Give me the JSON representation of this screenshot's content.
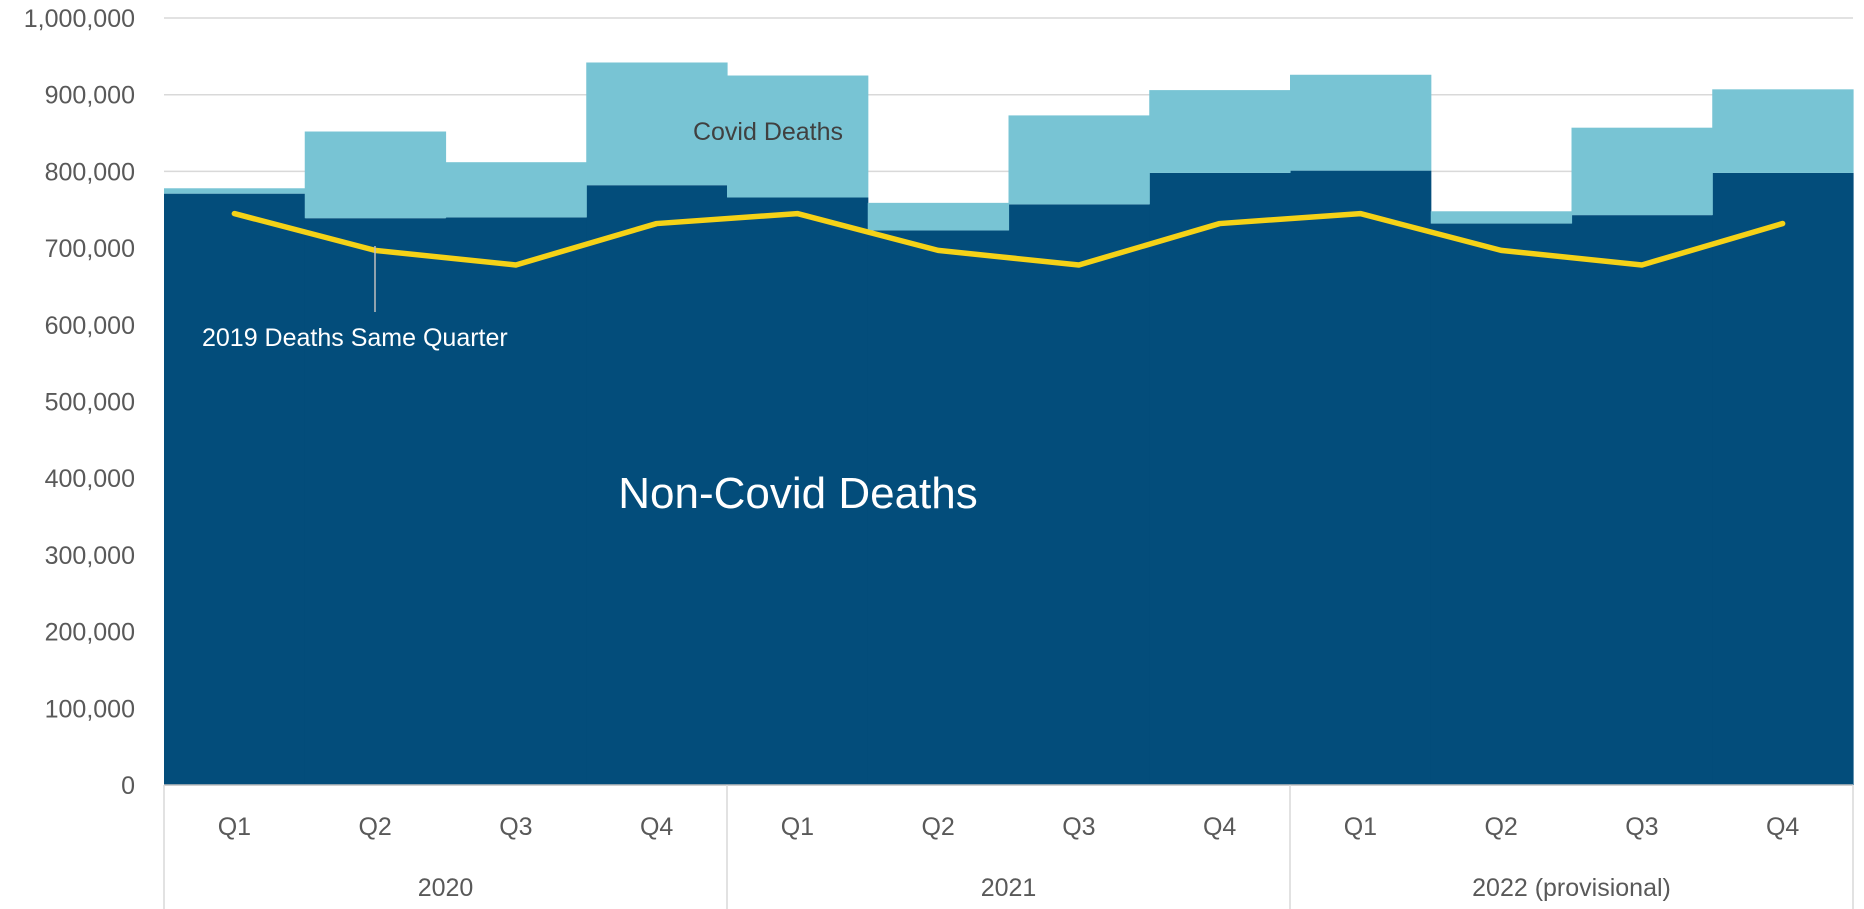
{
  "chart_data": {
    "type": "area",
    "title": "",
    "xlabel": "",
    "ylabel": "",
    "ylim": [
      0,
      1000000
    ],
    "yticks": [
      "0",
      "100,000",
      "200,000",
      "300,000",
      "400,000",
      "500,000",
      "600,000",
      "700,000",
      "800,000",
      "900,000",
      "1,000,000"
    ],
    "grid": true,
    "categories": [
      "Q1",
      "Q2",
      "Q3",
      "Q4",
      "Q1",
      "Q2",
      "Q3",
      "Q4",
      "Q1",
      "Q2",
      "Q3",
      "Q4"
    ],
    "groups": [
      {
        "label": "2020",
        "span": 4
      },
      {
        "label": "2021",
        "span": 4
      },
      {
        "label": "2022 (provisional)",
        "span": 4
      }
    ],
    "series": [
      {
        "name": "Non-Covid Deaths",
        "kind": "stacked-step-area",
        "color": "#034d7b",
        "values": [
          771000,
          739000,
          740000,
          782000,
          766000,
          723000,
          757000,
          798000,
          801000,
          732000,
          743000,
          798000
        ]
      },
      {
        "name": "Covid Deaths",
        "kind": "stacked-step-area",
        "color": "#78c4d4",
        "values": [
          7000,
          113000,
          72000,
          160000,
          159000,
          36000,
          116000,
          108000,
          125000,
          16000,
          114000,
          109000
        ]
      },
      {
        "name": "2019 Deaths Same Quarter",
        "kind": "line",
        "color": "#f5d217",
        "values": [
          745000,
          697000,
          678000,
          732000,
          745000,
          697000,
          678000,
          732000,
          745000,
          697000,
          678000,
          732000
        ]
      }
    ],
    "annotations": {
      "covid": "Covid Deaths",
      "noncovid": "Non-Covid Deaths",
      "line_label": "2019 Deaths Same Quarter"
    }
  }
}
